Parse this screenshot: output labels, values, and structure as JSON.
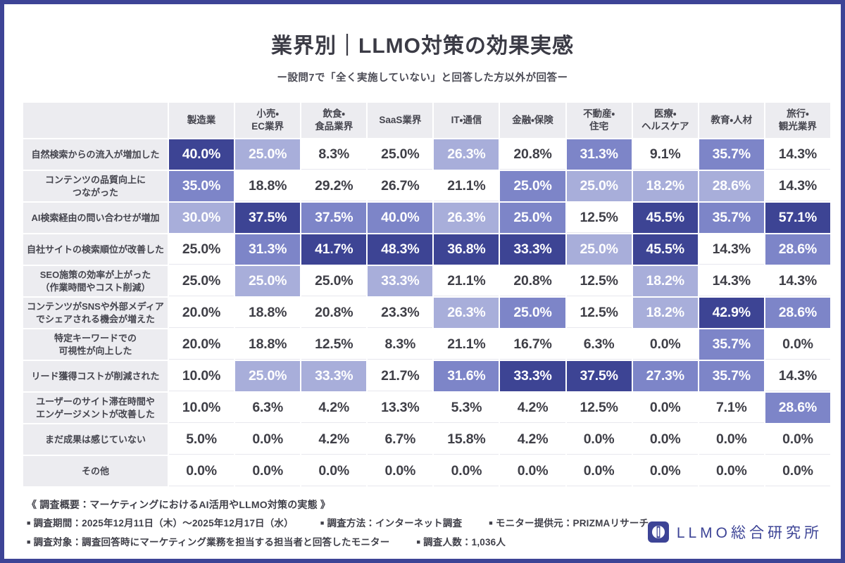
{
  "page": {
    "border_color": "#3d4496",
    "background": "#ffffff"
  },
  "header": {
    "title": "業界別｜LLMO対策の効果実感",
    "subtitle": "ー設問7で「全く実施していない」と回答した方以外が回答ー"
  },
  "chart_data": {
    "type": "heatmap",
    "unit": "%",
    "columns": [
      "製造業",
      "小売・\nEC業界",
      "飲食・\n食品業界",
      "SaaS業界",
      "IT・通信",
      "金融・保険",
      "不動産・\n住宅",
      "医療・\nヘルスケア",
      "教育・人材",
      "旅行・\n観光業界"
    ],
    "rows": [
      {
        "label": "自然検索からの流入が増加した",
        "values": [
          40.0,
          25.0,
          8.3,
          25.0,
          26.3,
          20.8,
          31.3,
          9.1,
          35.7,
          14.3
        ],
        "shades": [
          "D",
          "L",
          "W",
          "W",
          "L",
          "W",
          "M",
          "W",
          "M",
          "W"
        ]
      },
      {
        "label": "コンテンツの品質向上に\nつながった",
        "values": [
          35.0,
          18.8,
          29.2,
          26.7,
          21.1,
          25.0,
          25.0,
          18.2,
          28.6,
          14.3
        ],
        "shades": [
          "M",
          "W",
          "W",
          "W",
          "W",
          "M",
          "L",
          "L",
          "L",
          "W"
        ]
      },
      {
        "label": "AI検索経由の問い合わせが増加",
        "values": [
          30.0,
          37.5,
          37.5,
          40.0,
          26.3,
          25.0,
          12.5,
          45.5,
          35.7,
          57.1
        ],
        "shades": [
          "L",
          "D",
          "M",
          "M",
          "L",
          "M",
          "W",
          "D",
          "M",
          "D"
        ]
      },
      {
        "label": "自社サイトの検索順位が改善した",
        "values": [
          25.0,
          31.3,
          41.7,
          48.3,
          36.8,
          33.3,
          25.0,
          45.5,
          14.3,
          28.6
        ],
        "shades": [
          "W",
          "M",
          "D",
          "D",
          "D",
          "D",
          "L",
          "D",
          "W",
          "M"
        ]
      },
      {
        "label": "SEO施策の効率が上がった\n（作業時間やコスト削減）",
        "values": [
          25.0,
          25.0,
          25.0,
          33.3,
          21.1,
          20.8,
          12.5,
          18.2,
          14.3,
          14.3
        ],
        "shades": [
          "W",
          "L",
          "W",
          "L",
          "W",
          "W",
          "W",
          "L",
          "W",
          "W"
        ]
      },
      {
        "label": "コンテンツがSNSや外部メディア\nでシェアされる機会が増えた",
        "values": [
          20.0,
          18.8,
          20.8,
          23.3,
          26.3,
          25.0,
          12.5,
          18.2,
          42.9,
          28.6
        ],
        "shades": [
          "W",
          "W",
          "W",
          "W",
          "L",
          "M",
          "W",
          "L",
          "D",
          "M"
        ]
      },
      {
        "label": "特定キーワードでの\n可視性が向上した",
        "values": [
          20.0,
          18.8,
          12.5,
          8.3,
          21.1,
          16.7,
          6.3,
          0.0,
          35.7,
          0.0
        ],
        "shades": [
          "W",
          "W",
          "W",
          "W",
          "W",
          "W",
          "W",
          "W",
          "M",
          "W"
        ]
      },
      {
        "label": "リード獲得コストが削減された",
        "values": [
          10.0,
          25.0,
          33.3,
          21.7,
          31.6,
          33.3,
          37.5,
          27.3,
          35.7,
          14.3
        ],
        "shades": [
          "W",
          "L",
          "L",
          "W",
          "M",
          "D",
          "D",
          "M",
          "M",
          "W"
        ]
      },
      {
        "label": "ユーザーのサイト滞在時間や\nエンゲージメントが改善した",
        "values": [
          10.0,
          6.3,
          4.2,
          13.3,
          5.3,
          4.2,
          12.5,
          0.0,
          7.1,
          28.6
        ],
        "shades": [
          "W",
          "W",
          "W",
          "W",
          "W",
          "W",
          "W",
          "W",
          "W",
          "M"
        ]
      },
      {
        "label": "まだ成果は感じていない",
        "values": [
          5.0,
          0.0,
          4.2,
          6.7,
          15.8,
          4.2,
          0.0,
          0.0,
          0.0,
          0.0
        ],
        "shades": [
          "W",
          "W",
          "W",
          "W",
          "W",
          "W",
          "W",
          "W",
          "W",
          "W"
        ]
      },
      {
        "label": "その他",
        "values": [
          0.0,
          0.0,
          0.0,
          0.0,
          0.0,
          0.0,
          0.0,
          0.0,
          0.0,
          0.0
        ],
        "shades": [
          "W",
          "W",
          "W",
          "W",
          "W",
          "W",
          "W",
          "W",
          "W",
          "W"
        ]
      }
    ],
    "palette": {
      "D": "#3d4494",
      "M": "#7d85c8",
      "L": "#a8aeda",
      "W": "#ffffff"
    },
    "header_background": "#ececf0",
    "grid": "white 2px gaps"
  },
  "footer": {
    "survey_title": "《 調査概要：マーケティングにおけるAI活用やLLMO対策の実態 》",
    "bullet": "■",
    "lines": [
      [
        {
          "label": "調査期間",
          "value": "2025年12月11日（木）〜2025年12月17日（水）"
        },
        {
          "label": "調査方法",
          "value": "インターネット調査"
        },
        {
          "label": "モニター提供元",
          "value": "PRIZMAリサーチ"
        }
      ],
      [
        {
          "label": "調査対象",
          "value": "調査回答時にマーケティング業務を担当する担当者と回答したモニター"
        },
        {
          "label": "調査人数",
          "value": "1,036人"
        }
      ]
    ]
  },
  "logo": {
    "text": "LLMO総合研究所",
    "color": "#3d4496"
  }
}
